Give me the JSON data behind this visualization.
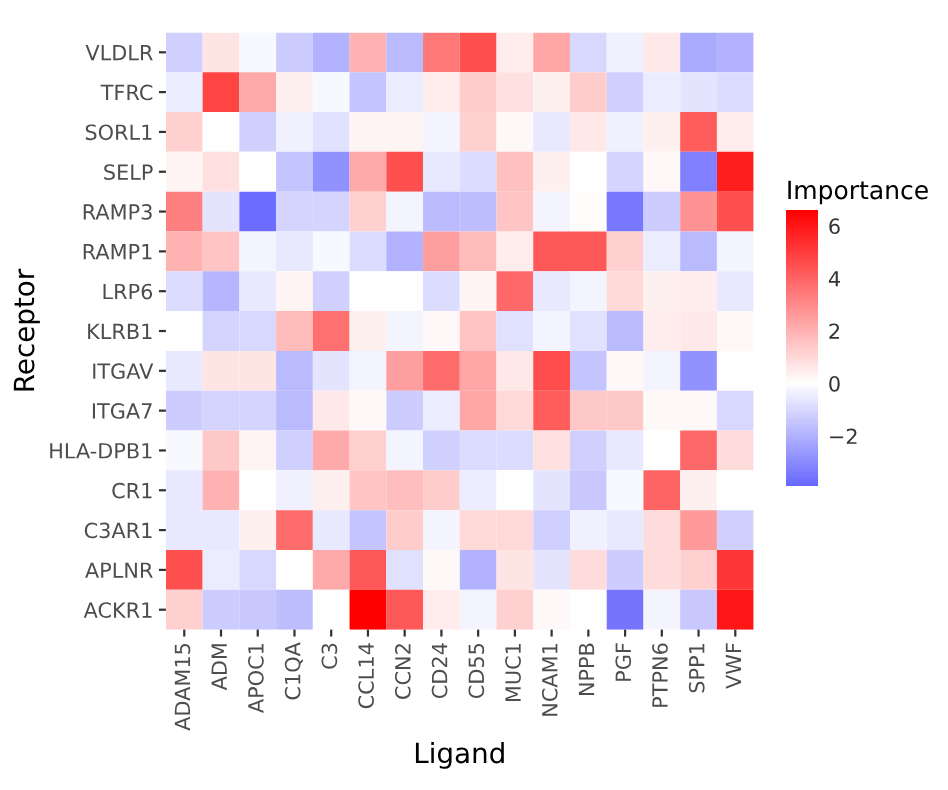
{
  "chart_data": {
    "type": "heatmap",
    "xlabel": "Ligand",
    "ylabel": "Receptor",
    "clabel": "Importance",
    "categories": [
      "ADAM15",
      "ADM",
      "APOC1",
      "C1QA",
      "C3",
      "CCL14",
      "CCN2",
      "CD24",
      "CD55",
      "MUC1",
      "NCAM1",
      "NPPB",
      "PGF",
      "PTPN6",
      "SPP1",
      "VWF"
    ],
    "y_categories": [
      "VLDLR",
      "TFRC",
      "SORL1",
      "SELP",
      "RAMP3",
      "RAMP1",
      "LRP6",
      "KLRB1",
      "ITGAV",
      "ITGA7",
      "HLA-DPB1",
      "CR1",
      "C3AR1",
      "APLNR",
      "ACKR1"
    ],
    "cells": [
      [
        -1.2,
        0.7,
        -0.2,
        -1.3,
        -2.0,
        2.0,
        -1.8,
        3.5,
        4.5,
        0.5,
        2.3,
        -1.0,
        -0.4,
        0.6,
        -2.2,
        -2.0
      ],
      [
        -0.5,
        4.8,
        2.2,
        0.4,
        -0.2,
        -1.5,
        -0.5,
        0.5,
        1.3,
        0.8,
        0.4,
        1.3,
        -1.2,
        -0.5,
        -0.7,
        -0.9
      ],
      [
        1.2,
        0.0,
        -1.2,
        -0.4,
        -0.8,
        0.3,
        0.3,
        -0.3,
        1.2,
        0.2,
        -0.6,
        0.6,
        -0.4,
        0.4,
        4.2,
        0.5
      ],
      [
        0.3,
        0.8,
        0.0,
        -1.5,
        -2.8,
        2.2,
        4.5,
        -0.6,
        -0.9,
        1.6,
        0.4,
        0.0,
        -1.1,
        0.2,
        -3.3,
        5.8
      ],
      [
        3.3,
        -0.7,
        -3.8,
        -1.1,
        -1.1,
        1.2,
        -0.3,
        -1.8,
        -1.7,
        1.5,
        -0.3,
        0.1,
        -3.5,
        -1.3,
        2.8,
        4.5
      ],
      [
        2.0,
        1.5,
        -0.3,
        -0.6,
        -0.2,
        -0.9,
        -2.0,
        2.5,
        1.8,
        0.5,
        4.3,
        4.3,
        1.2,
        -0.5,
        -1.8,
        -0.3
      ],
      [
        -0.9,
        -1.9,
        -0.6,
        0.3,
        -1.2,
        0.0,
        0.0,
        -0.9,
        0.3,
        3.9,
        -0.6,
        -0.3,
        1.0,
        0.4,
        0.5,
        -0.6
      ],
      [
        0.0,
        -1.1,
        -1.0,
        1.8,
        3.7,
        0.4,
        -0.3,
        0.2,
        1.5,
        -0.8,
        -0.3,
        -0.8,
        -1.8,
        0.5,
        0.6,
        0.2
      ],
      [
        -0.6,
        0.7,
        0.7,
        -1.8,
        -0.7,
        -0.3,
        2.5,
        3.8,
        2.3,
        0.6,
        4.6,
        -1.5,
        0.2,
        -0.3,
        -2.8,
        0.0
      ],
      [
        -1.3,
        -1.1,
        -1.1,
        -1.8,
        0.6,
        0.2,
        -1.3,
        -0.5,
        2.3,
        1.0,
        4.2,
        1.4,
        1.4,
        0.2,
        0.2,
        -1.0
      ],
      [
        -0.2,
        1.4,
        0.3,
        -1.2,
        2.2,
        1.2,
        -0.3,
        -1.2,
        -0.9,
        -0.9,
        0.8,
        -1.2,
        -0.6,
        0.0,
        3.9,
        0.9
      ],
      [
        -0.6,
        2.0,
        0.0,
        -0.4,
        0.4,
        1.5,
        1.7,
        1.3,
        -0.5,
        0.0,
        -0.7,
        -1.4,
        -0.2,
        4.0,
        0.4,
        0.0
      ],
      [
        -0.6,
        -0.6,
        0.4,
        3.8,
        -0.6,
        -1.5,
        1.3,
        -0.3,
        1.0,
        1.0,
        -1.2,
        -0.4,
        -0.6,
        0.9,
        2.6,
        -1.2
      ],
      [
        4.5,
        -0.5,
        -1.0,
        0.0,
        2.2,
        4.3,
        -0.8,
        0.2,
        -2.0,
        0.7,
        -0.7,
        0.9,
        -1.3,
        0.9,
        1.2,
        5.2
      ],
      [
        1.2,
        -1.3,
        -1.4,
        -1.7,
        0.0,
        6.6,
        4.3,
        0.5,
        -0.3,
        1.2,
        0.2,
        0.0,
        -3.6,
        -0.3,
        -1.4,
        6.0
      ]
    ],
    "clim": [
      -3.9,
      6.6
    ],
    "cticks": [
      -2,
      0,
      2,
      4,
      6
    ]
  }
}
